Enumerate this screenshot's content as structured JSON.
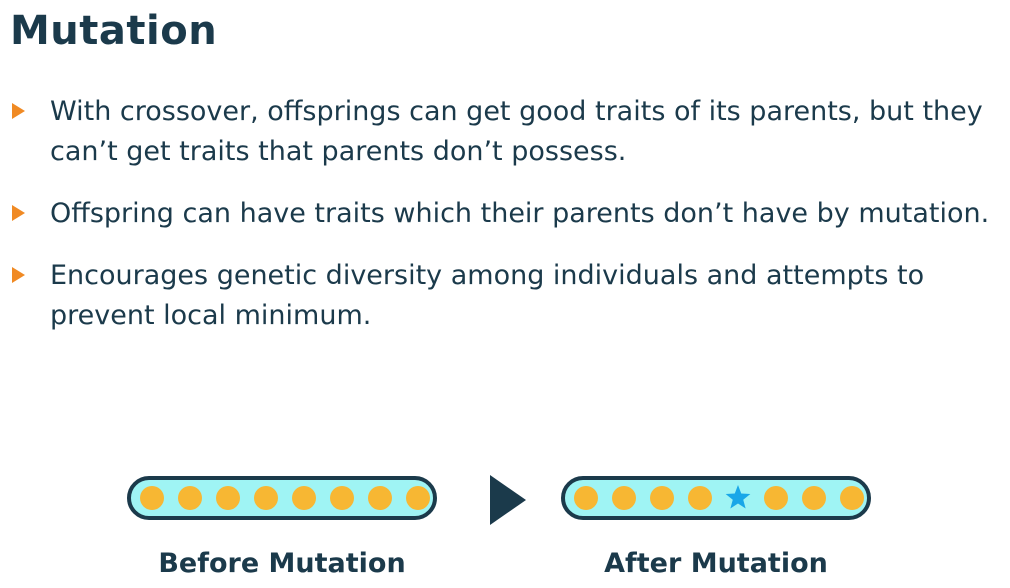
{
  "title": "Mutation",
  "bullets": [
    "With crossover, offsprings can get good traits of its parents, but they can’t get traits that parents don’t possess.",
    "Offspring can have traits which their parents don’t have by mutation.",
    "Encourages genetic diversity among individuals and attempts to prevent local minimum."
  ],
  "diagram": {
    "before": {
      "label": "Before Mutation",
      "genes": [
        "circle",
        "circle",
        "circle",
        "circle",
        "circle",
        "circle",
        "circle",
        "circle"
      ]
    },
    "after": {
      "label": "After Mutation",
      "genes": [
        "circle",
        "circle",
        "circle",
        "circle",
        "star",
        "circle",
        "circle",
        "circle"
      ]
    },
    "colors": {
      "gene": "#f7b733",
      "mutated_gene": "#19a7e8",
      "chromosome_fill": "#9ff4f4",
      "outline": "#1b3a4b",
      "bullet_marker": "#f08a24"
    }
  }
}
